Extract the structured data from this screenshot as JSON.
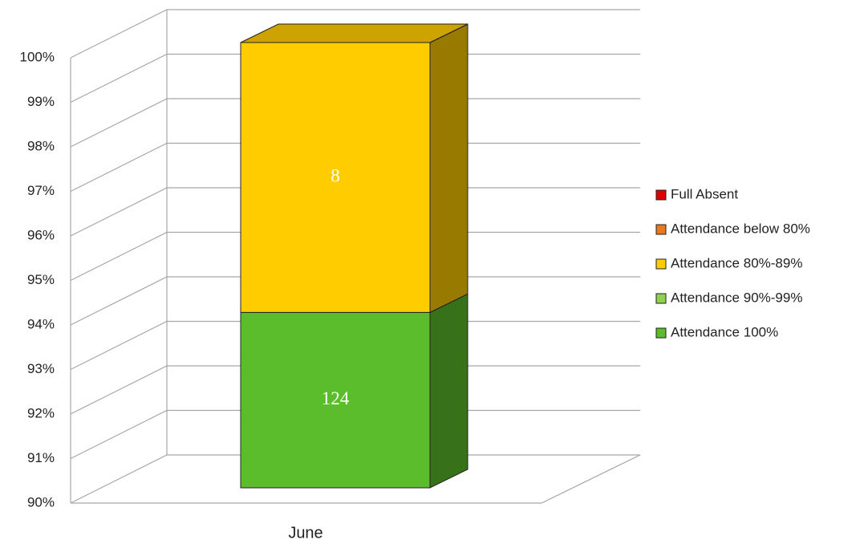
{
  "chart_data": {
    "type": "bar",
    "stacking": "percent",
    "three_d": true,
    "categories": [
      "June"
    ],
    "series": [
      {
        "name": "Full Absent",
        "color": "#e00000",
        "values": [
          0
        ]
      },
      {
        "name": "Attendance below 80%",
        "color": "#e8791e",
        "values": [
          0
        ]
      },
      {
        "name": "Attendance 80%-89%",
        "color": "#ffcc00",
        "values": [
          8
        ]
      },
      {
        "name": "Attendance 90%-99%",
        "color": "#92d050",
        "values": [
          0
        ]
      },
      {
        "name": "Attendance 100%",
        "color": "#5bbd2b",
        "values": [
          124
        ]
      }
    ],
    "ylim": [
      90,
      100
    ],
    "yticks": [
      {
        "value": 90,
        "label": "90%"
      },
      {
        "value": 91,
        "label": "91%"
      },
      {
        "value": 92,
        "label": "92%"
      },
      {
        "value": 93,
        "label": "93%"
      },
      {
        "value": 94,
        "label": "94%"
      },
      {
        "value": 95,
        "label": "95%"
      },
      {
        "value": 96,
        "label": "96%"
      },
      {
        "value": 97,
        "label": "97%"
      },
      {
        "value": 98,
        "label": "98%"
      },
      {
        "value": 99,
        "label": "99%"
      },
      {
        "value": 100,
        "label": "100%"
      }
    ],
    "grid": true,
    "legend": "right"
  }
}
